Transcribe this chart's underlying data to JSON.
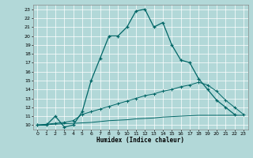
{
  "title": "",
  "xlabel": "Humidex (Indice chaleur)",
  "background_color": "#b2d8d8",
  "grid_color": "#ffffff",
  "line_color": "#006666",
  "xlim": [
    -0.5,
    23.5
  ],
  "ylim": [
    9.5,
    23.5
  ],
  "xticks": [
    0,
    1,
    2,
    3,
    4,
    5,
    6,
    7,
    8,
    9,
    10,
    11,
    12,
    13,
    14,
    15,
    16,
    17,
    18,
    19,
    20,
    21,
    22,
    23
  ],
  "yticks": [
    10,
    11,
    12,
    13,
    14,
    15,
    16,
    17,
    18,
    19,
    20,
    21,
    22,
    23
  ],
  "line1_x": [
    0,
    1,
    2,
    3,
    4,
    5,
    6,
    7,
    8,
    9,
    10,
    11,
    12,
    13,
    14,
    15,
    16,
    17,
    18,
    19,
    20,
    21,
    22
  ],
  "line1_y": [
    10,
    10,
    11,
    9.8,
    10,
    11.5,
    15,
    17.5,
    20,
    20,
    21,
    22.8,
    23,
    21,
    21.5,
    19.0,
    17.3,
    17.0,
    15.2,
    14.0,
    12.8,
    12.0,
    11.2
  ],
  "line2_x": [
    0,
    1,
    2,
    3,
    4,
    5,
    6,
    7,
    8,
    9,
    10,
    11,
    12,
    13,
    14,
    15,
    16,
    17,
    18,
    19,
    20,
    21,
    22,
    23
  ],
  "line2_y": [
    10,
    10.1,
    10.2,
    10.3,
    10.5,
    11.2,
    11.5,
    11.8,
    12.1,
    12.4,
    12.7,
    13.0,
    13.3,
    13.5,
    13.8,
    14.0,
    14.3,
    14.5,
    14.8,
    14.5,
    13.8,
    12.8,
    12.0,
    11.2
  ],
  "line3_x": [
    0,
    1,
    2,
    3,
    4,
    5,
    6,
    7,
    8,
    9,
    10,
    11,
    12,
    13,
    14,
    15,
    16,
    17,
    18,
    19,
    20,
    21,
    22,
    23
  ],
  "line3_y": [
    10,
    10.05,
    10.1,
    10.15,
    10.2,
    10.25,
    10.3,
    10.4,
    10.5,
    10.55,
    10.6,
    10.7,
    10.75,
    10.8,
    10.9,
    10.95,
    11.0,
    11.05,
    11.1,
    11.1,
    11.1,
    11.1,
    11.1,
    11.1
  ]
}
